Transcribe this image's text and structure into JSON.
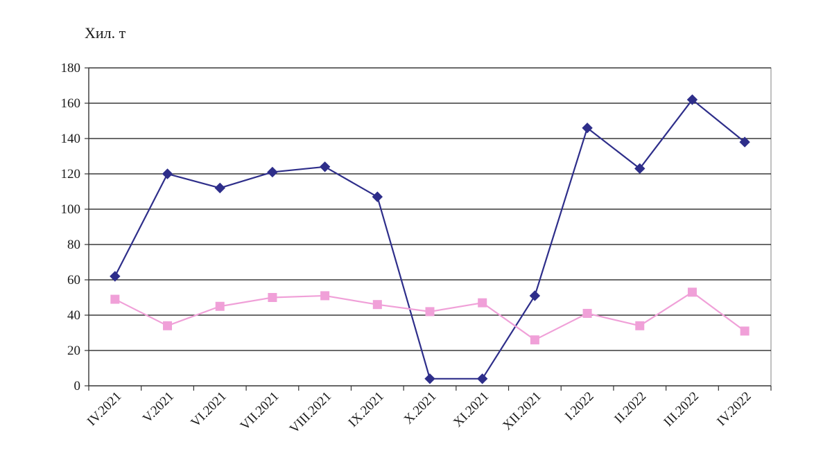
{
  "chart_data": {
    "type": "line",
    "ylabel": "Хил. т",
    "xlabel": "",
    "title": "",
    "categories": [
      "IV.2021",
      "V.2021",
      "VI.2021",
      "VII.2021",
      "VIII.2021",
      "IX.2021",
      "X.2021",
      "XI.2021",
      "XII.2021",
      "I.2022",
      "II.2022",
      "III.2022",
      "IV.2022"
    ],
    "ylim": [
      0,
      180
    ],
    "yticks": [
      0,
      20,
      40,
      60,
      80,
      100,
      120,
      140,
      160,
      180
    ],
    "grid": true,
    "legend": "none",
    "series": [
      {
        "color": "#2e2e8a",
        "marker": "diamond",
        "values": [
          62,
          120,
          112,
          121,
          124,
          107,
          4,
          4,
          51,
          146,
          123,
          162,
          138
        ]
      },
      {
        "color": "#f0a0d8",
        "marker": "square",
        "values": [
          49,
          34,
          45,
          50,
          51,
          46,
          42,
          47,
          26,
          41,
          34,
          53,
          31
        ]
      }
    ]
  }
}
